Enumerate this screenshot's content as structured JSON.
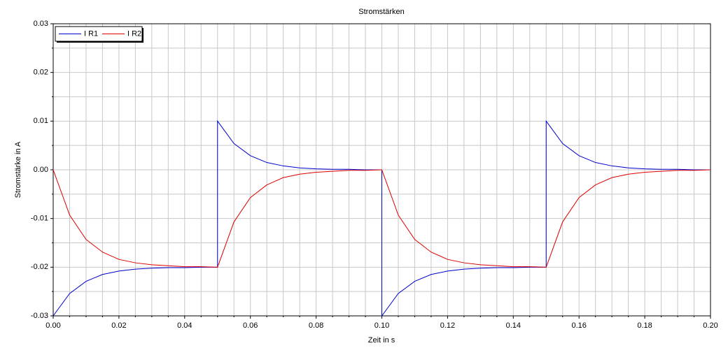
{
  "chart_data": {
    "type": "line",
    "title": "Stromstärken",
    "x_label": "Zeit in s",
    "y_label": "Stromstärke in A",
    "x": [
      0,
      0.005,
      0.01,
      0.015,
      0.02,
      0.025,
      0.03,
      0.035,
      0.04,
      0.045,
      0.05,
      0.05,
      0.055,
      0.06,
      0.065,
      0.07,
      0.075,
      0.08,
      0.085,
      0.09,
      0.095,
      0.1,
      0.1,
      0.105,
      0.11,
      0.115,
      0.12,
      0.125,
      0.13,
      0.135,
      0.14,
      0.145,
      0.15,
      0.15,
      0.155,
      0.16,
      0.165,
      0.17,
      0.175,
      0.18,
      0.185,
      0.19,
      0.195,
      0.2
    ],
    "series": [
      {
        "name": "I R1",
        "color": "#0000cc",
        "values": [
          -0.03,
          -0.0254,
          -0.0229,
          -0.0215,
          -0.0208,
          -0.0204,
          -0.0202,
          -0.0201,
          -0.0201,
          -0.02,
          -0.02,
          0.01,
          0.0054,
          0.0029,
          0.0015,
          0.0008,
          0.0004,
          0.0002,
          0.0001,
          0.0001,
          0,
          0,
          -0.03,
          -0.0254,
          -0.0229,
          -0.0215,
          -0.0208,
          -0.0204,
          -0.0202,
          -0.0201,
          -0.0201,
          -0.02,
          -0.02,
          0.01,
          0.0054,
          0.0029,
          0.0015,
          0.0008,
          0.0004,
          0.0002,
          0.0001,
          0.0001,
          0,
          0
        ]
      },
      {
        "name": "I R2",
        "color": "#dd0000",
        "values": [
          0,
          -0.0093,
          -0.0143,
          -0.0169,
          -0.0184,
          -0.0191,
          -0.0195,
          -0.0197,
          -0.0199,
          -0.0199,
          -0.02,
          -0.02,
          -0.0107,
          -0.0057,
          -0.0031,
          -0.0016,
          -0.0009,
          -0.0005,
          -0.0003,
          -0.0001,
          -0.0001,
          0,
          0,
          -0.0093,
          -0.0143,
          -0.0169,
          -0.0184,
          -0.0191,
          -0.0195,
          -0.0197,
          -0.0199,
          -0.0199,
          -0.02,
          -0.02,
          -0.0107,
          -0.0057,
          -0.0031,
          -0.0016,
          -0.0009,
          -0.0005,
          -0.0003,
          -0.0001,
          -0.0001,
          0
        ]
      }
    ],
    "xlim": [
      0,
      0.2
    ],
    "ylim": [
      -0.03,
      0.03
    ],
    "xticks": [
      {
        "value": 0,
        "label": "0.00"
      },
      0.02,
      0.04,
      0.06,
      0.08,
      {
        "value": 0.1,
        "label": "0.10"
      },
      0.12,
      0.14,
      0.16,
      0.18,
      {
        "value": 0.2,
        "label": "0.20"
      }
    ],
    "yticks": [
      -0.03,
      -0.02,
      -0.01,
      {
        "value": 0,
        "label": "0.00"
      },
      0.01,
      0.02,
      0.03
    ],
    "grid": true,
    "legend": "upper-left"
  }
}
